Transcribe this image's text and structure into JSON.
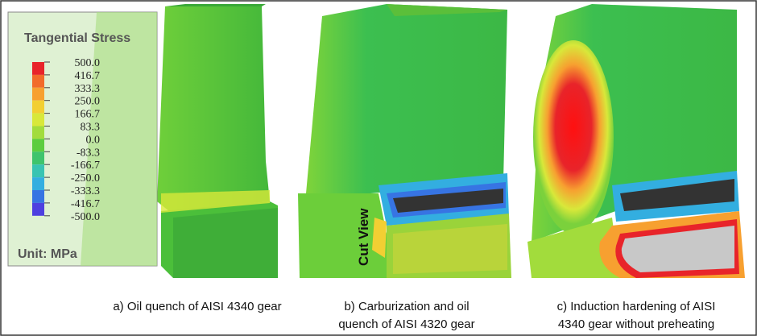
{
  "legend": {
    "title": "Tangential Stress",
    "labels": [
      "500.0",
      "416.7",
      "333.3",
      "250.0",
      "166.7",
      "83.3",
      "0.0",
      "-83.3",
      "-166.7",
      "-250.0",
      "-333.3",
      "-416.7",
      "-500.0"
    ],
    "colors": [
      "#e8242a",
      "#f26b2a",
      "#f7a030",
      "#f2cf33",
      "#d8e83a",
      "#a2dc3c",
      "#5ccd3f",
      "#3ec46c",
      "#38c4b2",
      "#33aee0",
      "#3774e3",
      "#4e40e0"
    ],
    "unit": "Unit: MPa"
  },
  "annotation": "Cut View",
  "captions": [
    {
      "lines": [
        "a)  Oil quench of AISI 4340 gear"
      ]
    },
    {
      "lines": [
        "b)  Carburization and oil",
        "quench of AISI 4320 gear"
      ]
    },
    {
      "lines": [
        "c)  Induction hardening of AISI",
        "4340 gear without preheating"
      ]
    }
  ]
}
